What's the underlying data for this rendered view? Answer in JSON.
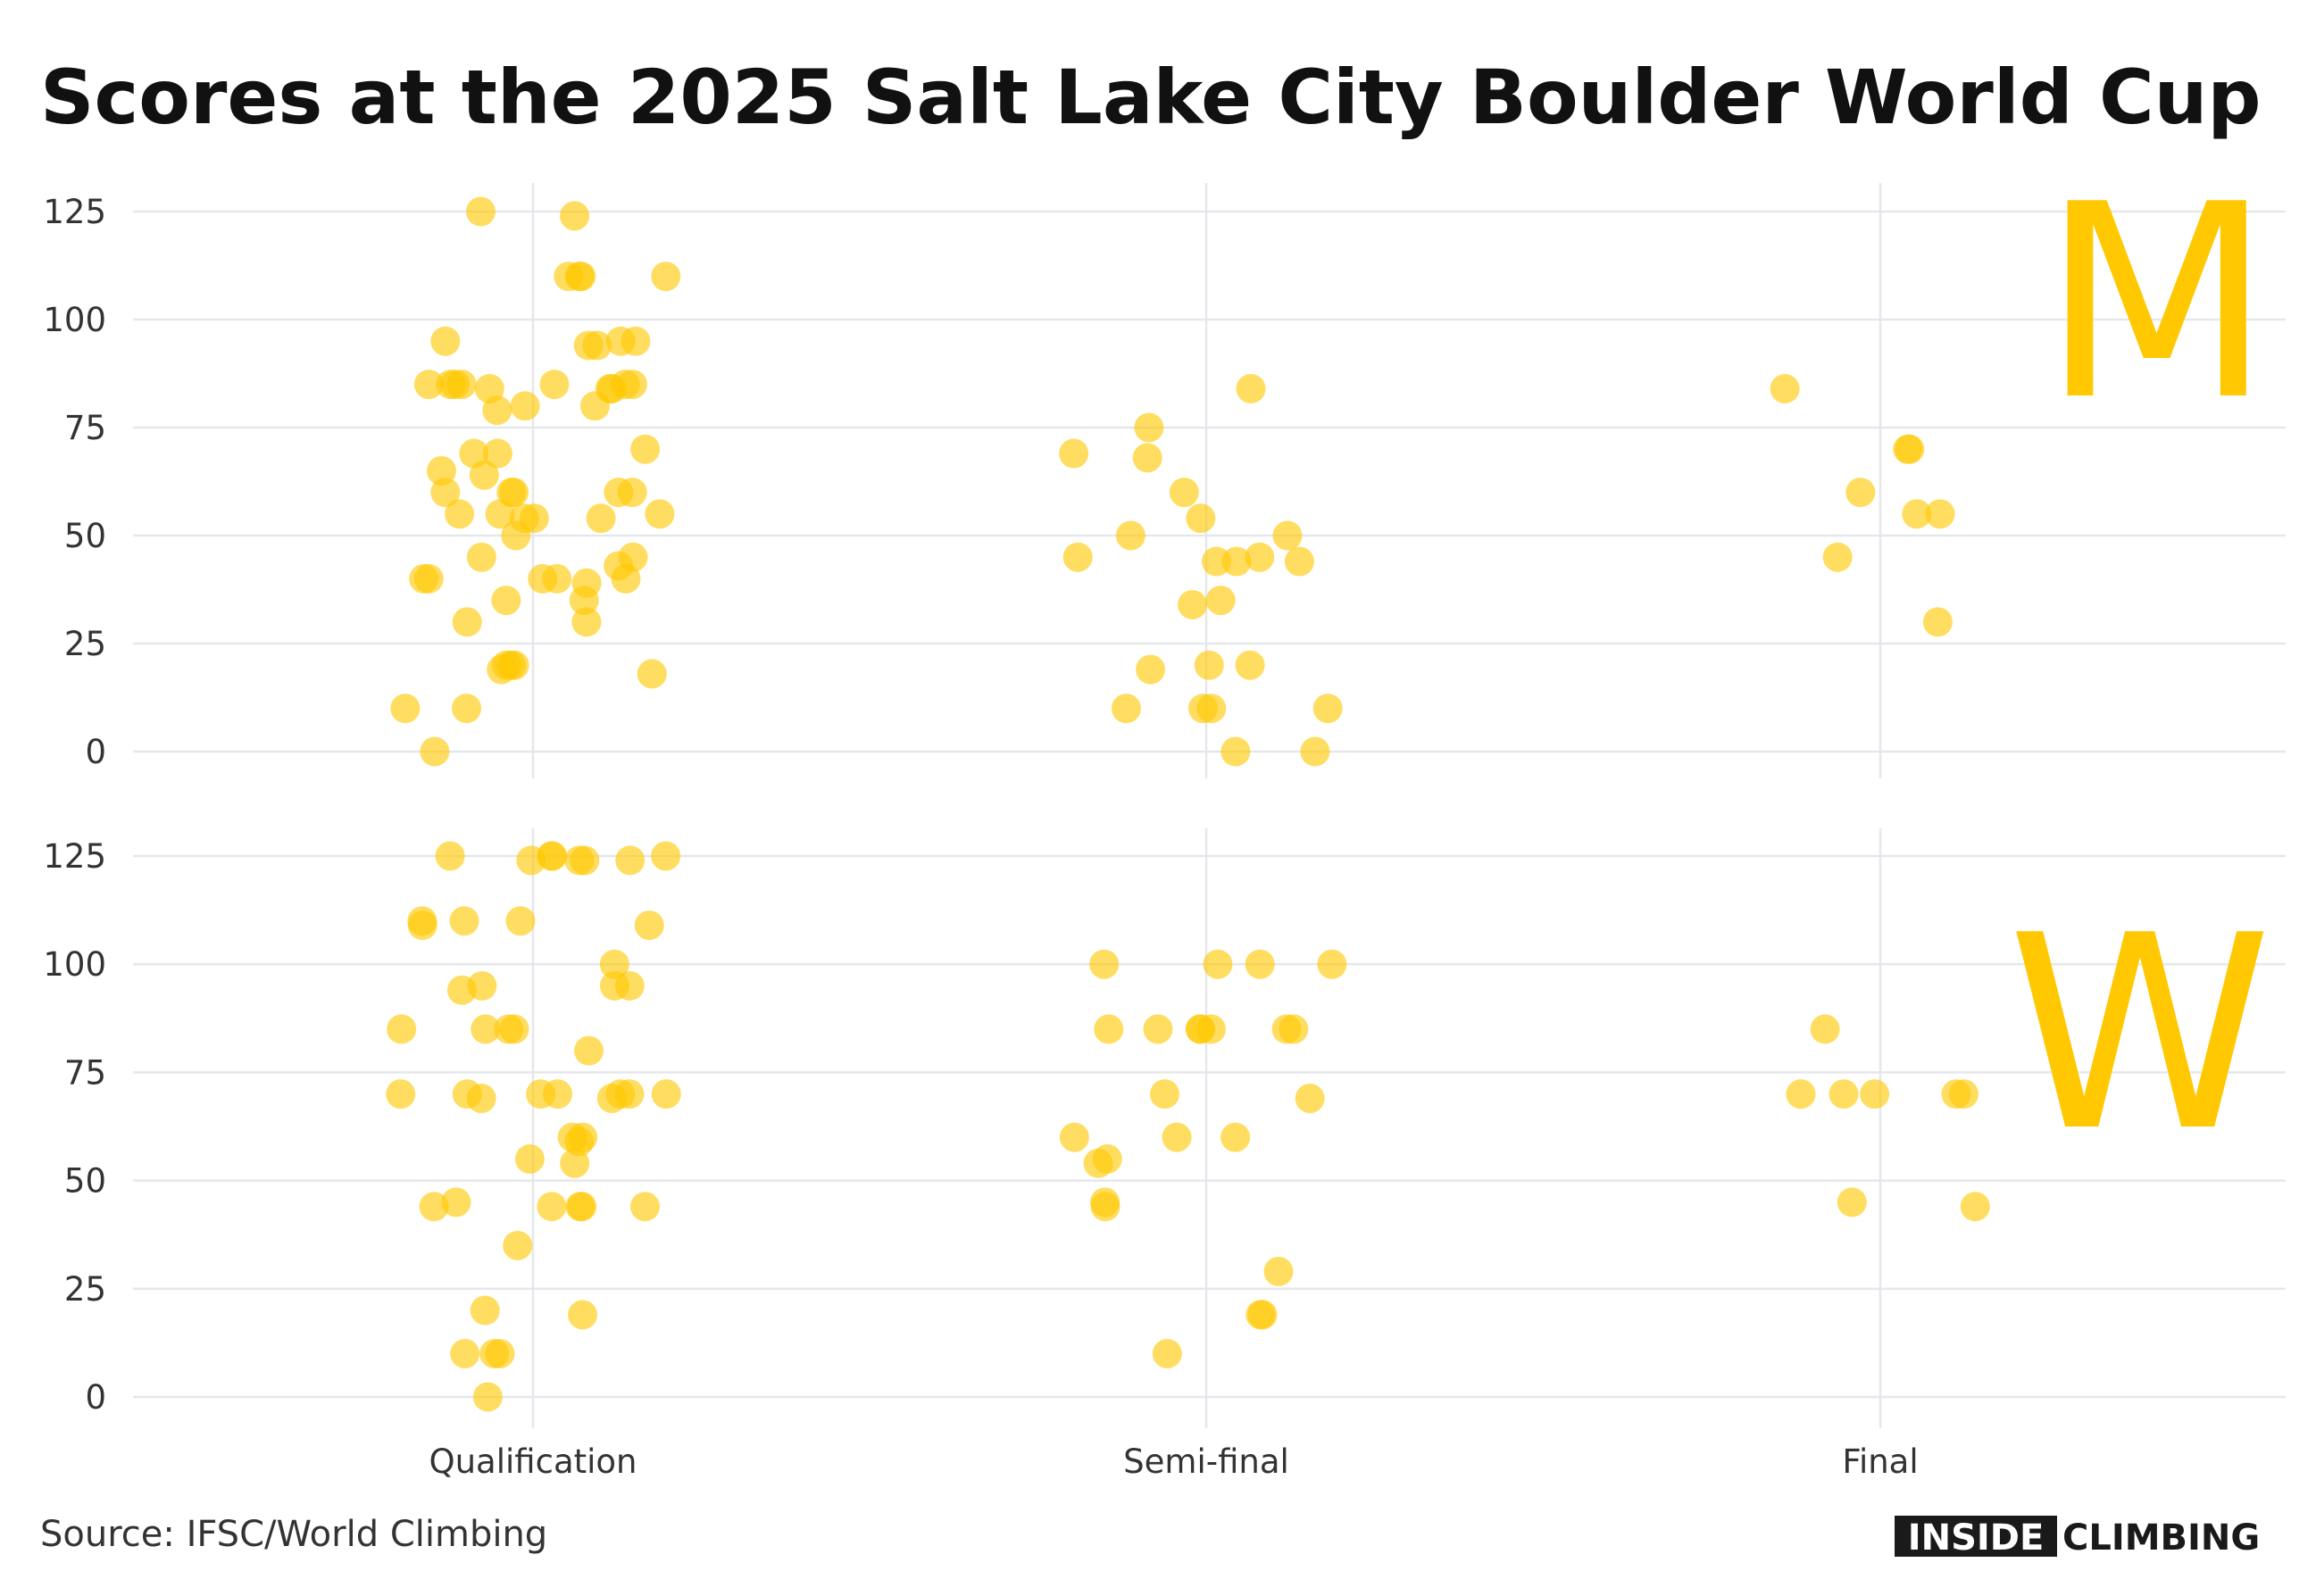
{
  "title": "Scores at the 2025 Salt Lake City Boulder World Cup",
  "source": "Source: IFSC/World Climbing",
  "logo": {
    "left": "INSIDE",
    "right": "CLIMBING"
  },
  "categories": [
    "Qualification",
    "Semi-final",
    "Final"
  ],
  "chart_data": [
    {
      "type": "strip",
      "label": "M",
      "color": "#ffc800",
      "ylim": [
        0,
        125
      ],
      "yticks": [
        0,
        25,
        50,
        75,
        100,
        125
      ],
      "grid": true,
      "values": [
        [
          124,
          125,
          110,
          110,
          110,
          110,
          95,
          95,
          94,
          95,
          94,
          84,
          84,
          85,
          85,
          85,
          85,
          84,
          85,
          85,
          85,
          80,
          80,
          79,
          69,
          69,
          70,
          60,
          60,
          60,
          60,
          60,
          65,
          64,
          55,
          54,
          55,
          54,
          54,
          55,
          50,
          45,
          43,
          45,
          40,
          40,
          39,
          40,
          40,
          40,
          35,
          35,
          30,
          30,
          19,
          20,
          20,
          18,
          20,
          10,
          10,
          0
        ],
        [
          84,
          69,
          75,
          68,
          60,
          50,
          50,
          54,
          44,
          44,
          44,
          45,
          45,
          35,
          34,
          20,
          20,
          19,
          10,
          10,
          10,
          10,
          0,
          0
        ],
        [
          84,
          70,
          70,
          60,
          55,
          55,
          45,
          30
        ]
      ]
    },
    {
      "type": "strip",
      "label": "W",
      "color": "#ffc800",
      "ylim": [
        0,
        125
      ],
      "yticks": [
        0,
        25,
        50,
        75,
        100,
        125
      ],
      "grid": true,
      "values": [
        [
          125,
          124,
          125,
          125,
          124,
          124,
          125,
          124,
          110,
          109,
          109,
          110,
          110,
          100,
          95,
          95,
          94,
          95,
          85,
          85,
          85,
          85,
          80,
          70,
          69,
          70,
          70,
          70,
          69,
          70,
          70,
          70,
          60,
          60,
          59,
          55,
          54,
          44,
          44,
          44,
          44,
          45,
          44,
          35,
          20,
          19,
          10,
          10,
          10,
          0
        ],
        [
          100,
          100,
          100,
          100,
          85,
          85,
          85,
          85,
          85,
          85,
          85,
          69,
          70,
          60,
          60,
          60,
          54,
          55,
          45,
          44,
          29,
          19,
          19,
          10
        ],
        [
          85,
          70,
          70,
          70,
          70,
          70,
          45,
          44
        ]
      ]
    }
  ]
}
